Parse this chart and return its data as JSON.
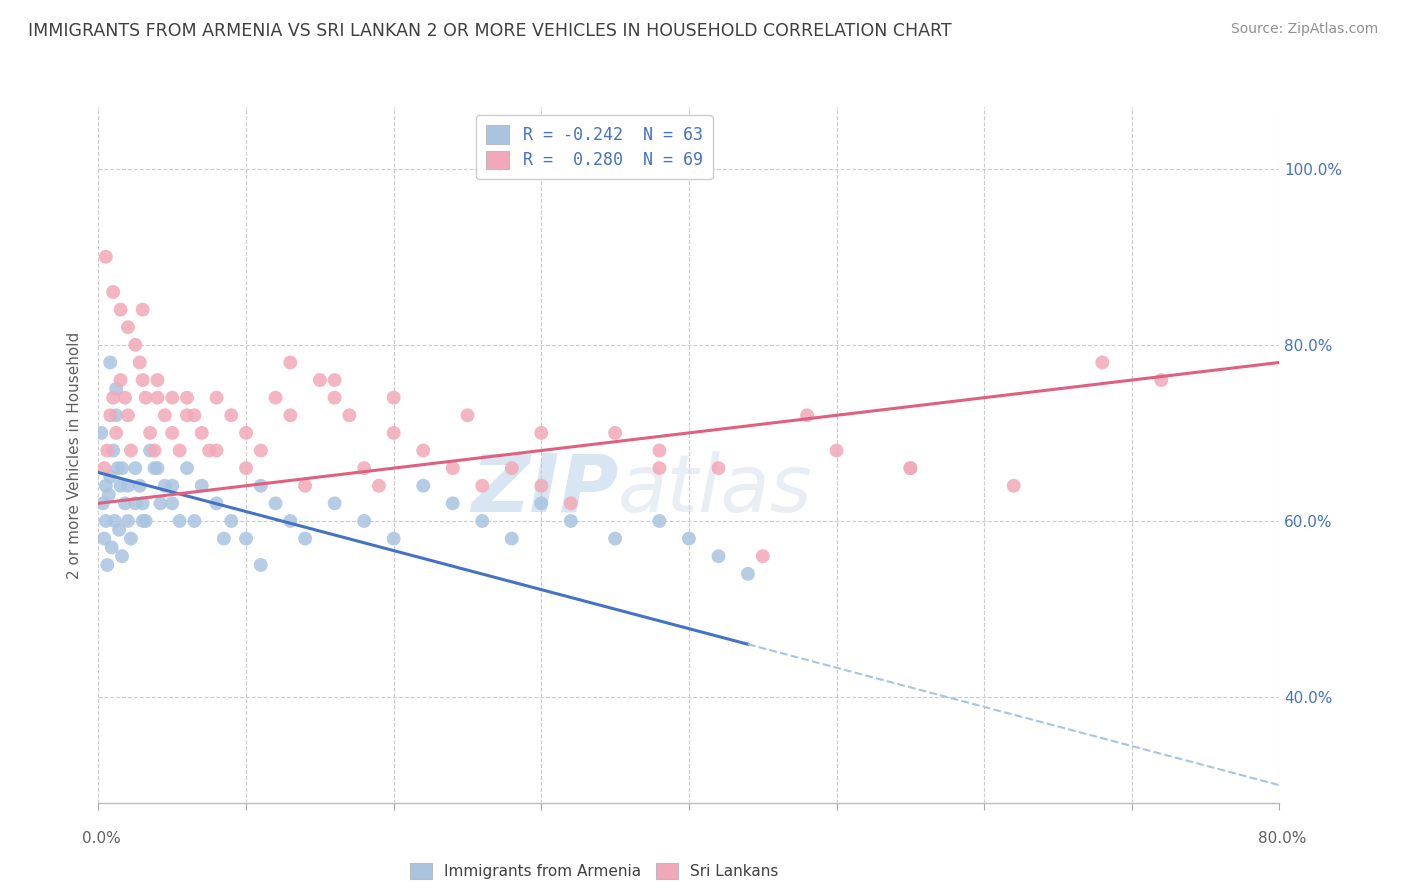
{
  "title": "IMMIGRANTS FROM ARMENIA VS SRI LANKAN 2 OR MORE VEHICLES IN HOUSEHOLD CORRELATION CHART",
  "source": "Source: ZipAtlas.com",
  "ylabel": "2 or more Vehicles in Household",
  "watermark_zip": "ZIP",
  "watermark_atlas": "atlas",
  "legend_label_1": "R = -0.242  N = 63",
  "legend_label_2": "R =  0.280  N = 69",
  "legend_series_1": "Immigrants from Armenia",
  "legend_series_2": "Sri Lankans",
  "blue_color": "#a8c4e0",
  "pink_color": "#f2a8b8",
  "blue_line_color": "#4472c4",
  "pink_line_color": "#e06080",
  "dash_color": "#a8c4e0",
  "title_color": "#404040",
  "source_color": "#909090",
  "grid_color": "#cccccc",
  "tick_color": "#4472c4",
  "background_color": "#ffffff",
  "xmin": 0.0,
  "xmax": 80.0,
  "ymin": 28.0,
  "ymax": 107.0,
  "y_ticks": [
    40.0,
    60.0,
    80.0,
    100.0
  ],
  "blue_scatter_x": [
    0.3,
    0.4,
    0.5,
    0.6,
    0.7,
    0.8,
    0.9,
    1.0,
    1.1,
    1.2,
    1.3,
    1.4,
    1.5,
    1.6,
    1.8,
    2.0,
    2.2,
    2.5,
    2.8,
    3.0,
    3.2,
    3.5,
    3.8,
    4.2,
    4.5,
    5.0,
    5.5,
    6.0,
    7.0,
    8.0,
    9.0,
    10.0,
    11.0,
    12.0,
    13.0,
    14.0,
    16.0,
    18.0,
    20.0,
    22.0,
    24.0,
    26.0,
    28.0,
    30.0,
    32.0,
    35.0,
    38.0,
    40.0,
    42.0,
    44.0,
    0.2,
    0.5,
    0.8,
    1.2,
    1.6,
    2.0,
    2.5,
    3.0,
    4.0,
    5.0,
    6.5,
    8.5,
    11.0
  ],
  "blue_scatter_y": [
    62,
    58,
    60,
    55,
    63,
    65,
    57,
    68,
    60,
    72,
    66,
    59,
    64,
    56,
    62,
    60,
    58,
    66,
    64,
    62,
    60,
    68,
    66,
    62,
    64,
    62,
    60,
    66,
    64,
    62,
    60,
    58,
    64,
    62,
    60,
    58,
    62,
    60,
    58,
    64,
    62,
    60,
    58,
    62,
    60,
    58,
    60,
    58,
    56,
    54,
    70,
    64,
    78,
    75,
    66,
    64,
    62,
    60,
    66,
    64,
    60,
    58,
    55
  ],
  "pink_scatter_x": [
    0.4,
    0.6,
    0.8,
    1.0,
    1.2,
    1.5,
    1.8,
    2.0,
    2.2,
    2.5,
    2.8,
    3.0,
    3.2,
    3.5,
    3.8,
    4.0,
    4.5,
    5.0,
    5.5,
    6.0,
    6.5,
    7.0,
    7.5,
    8.0,
    9.0,
    10.0,
    11.0,
    12.0,
    13.0,
    14.0,
    15.0,
    16.0,
    17.0,
    18.0,
    19.0,
    20.0,
    22.0,
    24.0,
    26.0,
    28.0,
    30.0,
    32.0,
    35.0,
    38.0,
    42.0,
    45.0,
    50.0,
    55.0,
    0.5,
    1.0,
    1.5,
    2.0,
    3.0,
    4.0,
    5.0,
    6.0,
    8.0,
    10.0,
    13.0,
    16.0,
    20.0,
    25.0,
    30.0,
    38.0,
    48.0,
    55.0,
    62.0,
    68.0,
    72.0
  ],
  "pink_scatter_y": [
    66,
    68,
    72,
    74,
    70,
    76,
    74,
    72,
    68,
    80,
    78,
    76,
    74,
    70,
    68,
    74,
    72,
    70,
    68,
    74,
    72,
    70,
    68,
    74,
    72,
    70,
    68,
    74,
    72,
    64,
    76,
    74,
    72,
    66,
    64,
    70,
    68,
    66,
    64,
    66,
    64,
    62,
    70,
    68,
    66,
    56,
    68,
    66,
    90,
    86,
    84,
    82,
    84,
    76,
    74,
    72,
    68,
    66,
    78,
    76,
    74,
    72,
    70,
    66,
    72,
    66,
    64,
    78,
    76
  ],
  "blue_trend_x0": 0.0,
  "blue_trend_x1": 44.0,
  "blue_trend_y0": 65.5,
  "blue_trend_y1": 46.0,
  "blue_dash_x0": 44.0,
  "blue_dash_x1": 80.0,
  "blue_dash_y0": 46.0,
  "blue_dash_y1": 30.0,
  "pink_trend_x0": 0.0,
  "pink_trend_x1": 80.0,
  "pink_trend_y0": 62.0,
  "pink_trend_y1": 78.0
}
